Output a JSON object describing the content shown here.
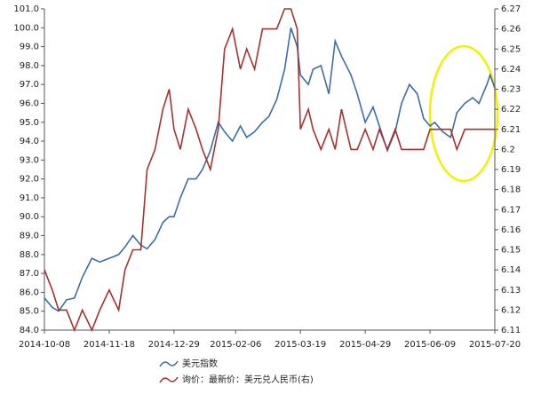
{
  "chart_data": {
    "type": "line",
    "x": [
      "2014-10-08",
      "2014-10-13",
      "2014-10-17",
      "2014-10-22",
      "2014-10-27",
      "2014-11-01",
      "2014-11-07",
      "2014-11-12",
      "2014-11-18",
      "2014-11-24",
      "2014-11-28",
      "2014-12-03",
      "2014-12-08",
      "2014-12-12",
      "2014-12-17",
      "2014-12-22",
      "2014-12-26",
      "2014-12-29",
      "2015-01-02",
      "2015-01-07",
      "2015-01-12",
      "2015-01-16",
      "2015-01-21",
      "2015-01-26",
      "2015-01-30",
      "2015-02-04",
      "2015-02-09",
      "2015-02-13",
      "2015-02-18",
      "2015-02-23",
      "2015-02-27",
      "2015-03-04",
      "2015-03-09",
      "2015-03-13",
      "2015-03-17",
      "2015-03-19",
      "2015-03-24",
      "2015-03-27",
      "2015-04-01",
      "2015-04-06",
      "2015-04-10",
      "2015-04-14",
      "2015-04-20",
      "2015-04-24",
      "2015-04-29",
      "2015-05-04",
      "2015-05-08",
      "2015-05-13",
      "2015-05-18",
      "2015-05-22",
      "2015-05-27",
      "2015-06-01",
      "2015-06-05",
      "2015-06-09",
      "2015-06-12",
      "2015-06-17",
      "2015-06-22",
      "2015-06-26",
      "2015-07-01",
      "2015-07-06",
      "2015-07-10",
      "2015-07-15",
      "2015-07-17",
      "2015-07-20"
    ],
    "series": [
      {
        "name": "美元指数",
        "color": "#3b6ea8",
        "axis": "y",
        "values": [
          85.7,
          85.2,
          85.0,
          85.6,
          85.7,
          86.8,
          87.8,
          87.6,
          87.8,
          88.0,
          88.4,
          89.0,
          88.5,
          88.3,
          88.8,
          89.7,
          90.0,
          90.0,
          91.0,
          92.0,
          92.0,
          92.5,
          93.5,
          95.0,
          94.5,
          94.0,
          94.8,
          94.2,
          94.5,
          95.0,
          95.3,
          96.2,
          97.8,
          100.0,
          99.0,
          97.5,
          97.0,
          97.8,
          98.0,
          96.5,
          99.3,
          98.5,
          97.5,
          96.5,
          95.0,
          95.8,
          94.8,
          93.5,
          94.5,
          96.0,
          97.0,
          96.5,
          95.2,
          94.8,
          95.0,
          94.5,
          94.2,
          95.5,
          96.0,
          96.3,
          96.0,
          97.0,
          97.5,
          96.8
        ]
      },
      {
        "name": "询价：最新价：美元兑人民币(右)",
        "color": "#a5322e",
        "axis": "y2",
        "values": [
          6.14,
          6.13,
          6.12,
          6.12,
          6.11,
          6.12,
          6.11,
          6.12,
          6.13,
          6.12,
          6.14,
          6.15,
          6.15,
          6.19,
          6.2,
          6.22,
          6.23,
          6.21,
          6.2,
          6.22,
          6.21,
          6.2,
          6.19,
          6.21,
          6.25,
          6.26,
          6.24,
          6.25,
          6.24,
          6.26,
          6.26,
          6.26,
          6.27,
          6.27,
          6.26,
          6.21,
          6.22,
          6.21,
          6.2,
          6.21,
          6.2,
          6.22,
          6.2,
          6.2,
          6.21,
          6.2,
          6.21,
          6.2,
          6.21,
          6.2,
          6.2,
          6.2,
          6.2,
          6.21,
          6.21,
          6.21,
          6.21,
          6.2,
          6.21,
          6.21,
          6.21,
          6.21,
          6.21,
          6.21
        ]
      }
    ],
    "xlim": [
      "2014-10-08",
      "2015-07-20"
    ],
    "xticks": [
      "2014-10-08",
      "2014-11-18",
      "2014-12-29",
      "2015-02-06",
      "2015-03-19",
      "2015-04-29",
      "2015-06-09",
      "2015-07-20"
    ],
    "ylim": [
      84,
      101
    ],
    "yticks": [
      {
        "value": 84,
        "label": "84.0"
      },
      {
        "value": 85,
        "label": "85.0"
      },
      {
        "value": 86,
        "label": "86.0"
      },
      {
        "value": 87,
        "label": "87.0"
      },
      {
        "value": 88,
        "label": "88.0"
      },
      {
        "value": 89,
        "label": "89.0"
      },
      {
        "value": 90,
        "label": "90.0"
      },
      {
        "value": 91,
        "label": "91.0"
      },
      {
        "value": 92,
        "label": "92.0"
      },
      {
        "value": 93,
        "label": "93.0"
      },
      {
        "value": 94,
        "label": "94.0"
      },
      {
        "value": 95,
        "label": "95.0"
      },
      {
        "value": 96,
        "label": "96.0"
      },
      {
        "value": 97,
        "label": "97.0"
      },
      {
        "value": 98,
        "label": "98.0"
      },
      {
        "value": 99,
        "label": "99.0"
      },
      {
        "value": 100,
        "label": "100.0"
      },
      {
        "value": 101,
        "label": "101.0"
      }
    ],
    "y2lim": [
      6.11,
      6.27
    ],
    "y2ticks": [
      6.11,
      6.12,
      6.13,
      6.14,
      6.15,
      6.16,
      6.17,
      6.18,
      6.19,
      6.2,
      6.21,
      6.22,
      6.23,
      6.24,
      6.25,
      6.26,
      6.27
    ]
  }
}
